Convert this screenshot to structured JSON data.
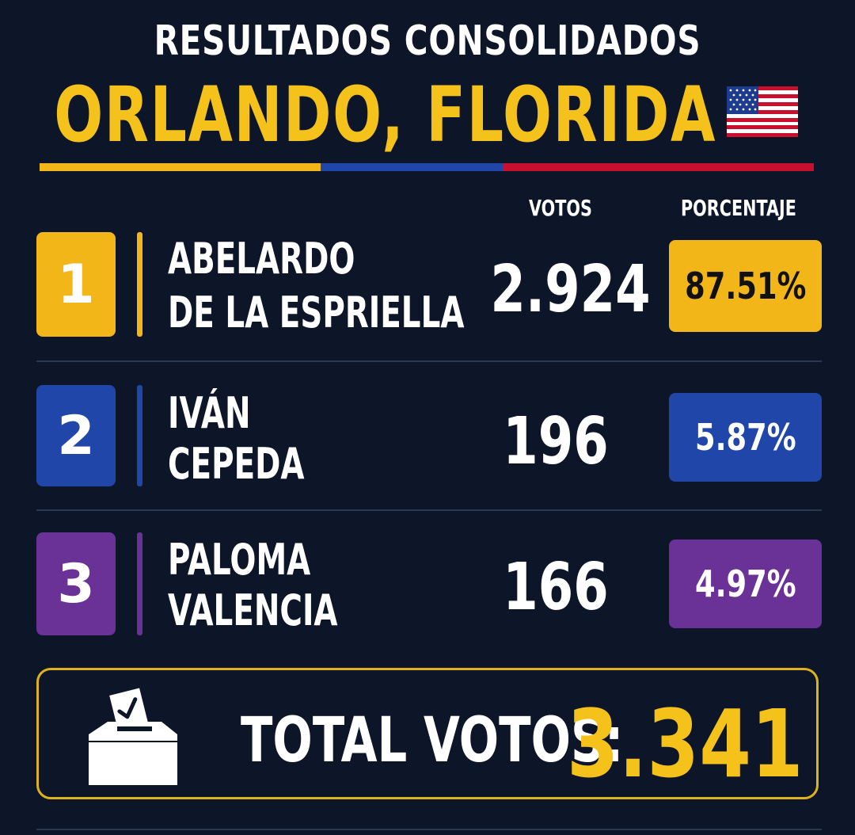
{
  "header": {
    "kicker": "RESULTADOS CONSOLIDADOS",
    "city": "ORLANDO, FLORIDA",
    "flag_icon": "us-flag-icon"
  },
  "columns": {
    "votes": "VOTOS",
    "percent": "PORCENTAJE"
  },
  "candidates": [
    {
      "rank": "1",
      "name_line1": "ABELARDO",
      "name_line2": "DE LA ESPRIELLA",
      "votes": "2.924",
      "percent": "87.51%",
      "color": "#f2b619",
      "percent_text_color": "#111111"
    },
    {
      "rank": "2",
      "name_line1": "IVÁN",
      "name_line2": "CEPEDA",
      "votes": "196",
      "percent": "5.87%",
      "color": "#1f46a8",
      "percent_text_color": "#ffffff"
    },
    {
      "rank": "3",
      "name_line1": "PALOMA",
      "name_line2": "VALENCIA",
      "votes": "166",
      "percent": "4.97%",
      "color": "#6a3296",
      "percent_text_color": "#ffffff"
    }
  ],
  "total": {
    "label": "TOTAL VOTOS:",
    "value": "3.341",
    "icon": "ballot-box-icon"
  },
  "colors": {
    "background": "#0d1628",
    "accent_yellow": "#f5c21b",
    "accent_blue": "#1f46a8",
    "accent_red": "#c8102e"
  }
}
